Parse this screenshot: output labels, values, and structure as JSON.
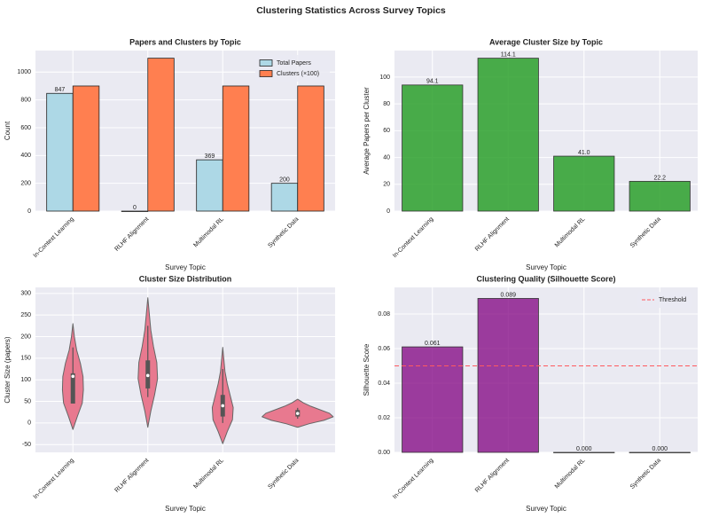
{
  "title": "Clustering Statistics Across Survey Topics",
  "chart_data": [
    {
      "type": "bar",
      "title": "Papers and Clusters by Topic",
      "xlabel": "Survey Topic",
      "ylabel": "Count",
      "categories": [
        "In-Context Learning",
        "RLHF Alignment",
        "Multimodal RL",
        "Synthetic Data"
      ],
      "series": [
        {
          "name": "Total Papers",
          "color": "#add8e6",
          "values": [
            847,
            0,
            369,
            200
          ],
          "data_labels": true
        },
        {
          "name": "Clusters (×100)",
          "color": "#ff7f50",
          "values": [
            900,
            1100,
            900,
            900
          ],
          "data_labels": false
        }
      ],
      "ylim": [
        0,
        1155
      ],
      "yticks": [
        0,
        200,
        400,
        600,
        800,
        1000
      ],
      "grid": true,
      "legend": "upper right"
    },
    {
      "type": "bar",
      "title": "Average Cluster Size by Topic",
      "xlabel": "Survey Topic",
      "ylabel": "Average Papers per Cluster",
      "categories": [
        "In-Context Learning",
        "RLHF Alignment",
        "Multimodal RL",
        "Synthetic Data"
      ],
      "values": [
        94.1,
        114.1,
        41.0,
        22.2
      ],
      "value_labels": [
        "94.1",
        "114.1",
        "41.0",
        "22.2"
      ],
      "color": "#2ca02c",
      "alpha": 0.85,
      "ylim": [
        0,
        119.8
      ],
      "yticks": [
        0,
        20,
        40,
        60,
        80,
        100
      ],
      "grid": true
    },
    {
      "type": "violin",
      "title": "Cluster Size Distribution",
      "xlabel": "Survey Topic",
      "ylabel": "Cluster Size (papers)",
      "categories": [
        "In-Context Learning",
        "RLHF Alignment",
        "Multimodal RL",
        "Synthetic Data"
      ],
      "color": "#e8798f",
      "violins": [
        {
          "min": -15,
          "max": 230,
          "whisker_low": 45,
          "q1": 45,
          "median": 108,
          "q3": 115,
          "whisker_high": 175,
          "density": [
            0,
            0.12,
            0.25,
            0.28,
            0.27,
            0.2,
            0.1,
            0.04,
            0
          ]
        },
        {
          "min": -10,
          "max": 290,
          "whisker_low": 60,
          "q1": 80,
          "median": 110,
          "q3": 145,
          "whisker_high": 225,
          "density": [
            0,
            0.08,
            0.18,
            0.26,
            0.24,
            0.15,
            0.08,
            0.04,
            0
          ]
        },
        {
          "min": -48,
          "max": 175,
          "whisker_low": 0,
          "q1": 15,
          "median": 40,
          "q3": 65,
          "whisker_high": 125,
          "density": [
            0,
            0.12,
            0.26,
            0.28,
            0.2,
            0.12,
            0.06,
            0.03,
            0
          ]
        },
        {
          "min": -10,
          "max": 55,
          "whisker_low": 10,
          "q1": 15,
          "median": 22,
          "q3": 30,
          "whisker_high": 35,
          "density": [
            0,
            0.3,
            0.7,
            0.95,
            0.85,
            0.6,
            0.35,
            0.15,
            0
          ]
        }
      ],
      "ylim": [
        -68,
        314
      ],
      "yticks": [
        -50,
        0,
        50,
        100,
        150,
        200,
        250,
        300
      ],
      "grid": true
    },
    {
      "type": "bar",
      "title": "Clustering Quality (Silhouette Score)",
      "xlabel": "Survey Topic",
      "ylabel": "Silhouette Score",
      "categories": [
        "In-Context Learning",
        "RLHF Alignment",
        "Multimodal RL",
        "Synthetic Data"
      ],
      "values": [
        0.061,
        0.089,
        0.0,
        0.0
      ],
      "value_labels": [
        "0.061",
        "0.089",
        "0.000",
        "0.000"
      ],
      "color": "#800080",
      "alpha": 0.75,
      "reference_line": {
        "name": "Threshold",
        "value": 0.05,
        "color": "#ff5a5f"
      },
      "ylim": [
        0,
        0.0954
      ],
      "yticks": [
        {
          "value": 0,
          "label": "0.00"
        },
        {
          "value": 0.02,
          "label": "0.02"
        },
        {
          "value": 0.04,
          "label": "0.04"
        },
        {
          "value": 0.06,
          "label": "0.06"
        },
        {
          "value": 0.08,
          "label": "0.08"
        }
      ],
      "grid": true,
      "legend": "upper right"
    }
  ]
}
